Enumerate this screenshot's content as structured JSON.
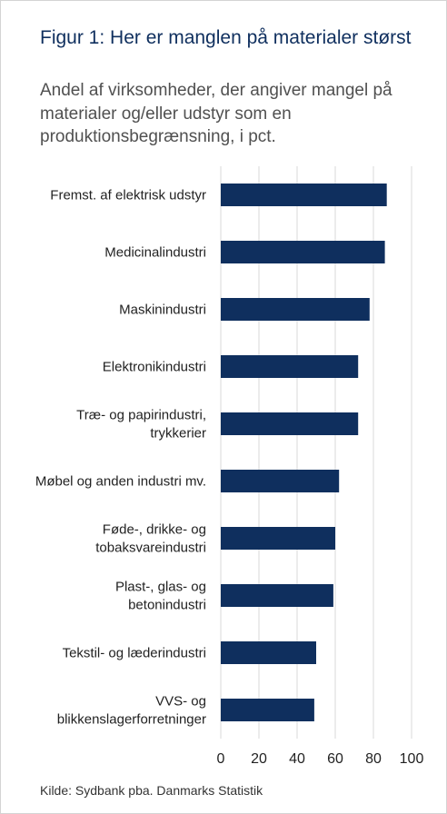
{
  "title": "Figur 1: Her er manglen på materialer størst",
  "subtitle": "Andel af virksomheder, der angiver mangel på materialer og/eller udstyr som en produktionsbegrænsning, i pct.",
  "source": "Kilde: Sydbank pba. Danmarks Statistik",
  "colors": {
    "bar": "#0f2f5e",
    "grid": "#d9d9d9"
  },
  "chart_data": {
    "type": "bar",
    "orientation": "horizontal",
    "categories": [
      [
        "Fremst. af elektrisk udstyr"
      ],
      [
        "Medicinalindustri"
      ],
      [
        "Maskinindustri"
      ],
      [
        "Elektronikindustri"
      ],
      [
        "Træ- og papirindustri,",
        "trykkerier"
      ],
      [
        "Møbel og anden industri mv."
      ],
      [
        "Føde-, drikke- og",
        "tobaksvareindustri"
      ],
      [
        "Plast-, glas- og",
        "betonindustri"
      ],
      [
        "Tekstil- og læderindustri"
      ],
      [
        "VVS- og",
        "blikkenslagerforretninger"
      ]
    ],
    "values": [
      87,
      86,
      78,
      72,
      72,
      62,
      60,
      59,
      50,
      49
    ],
    "xlim": [
      0,
      100
    ],
    "xticks": [
      0,
      20,
      40,
      60,
      80,
      100
    ],
    "grid": "vertical",
    "legend": "none"
  }
}
